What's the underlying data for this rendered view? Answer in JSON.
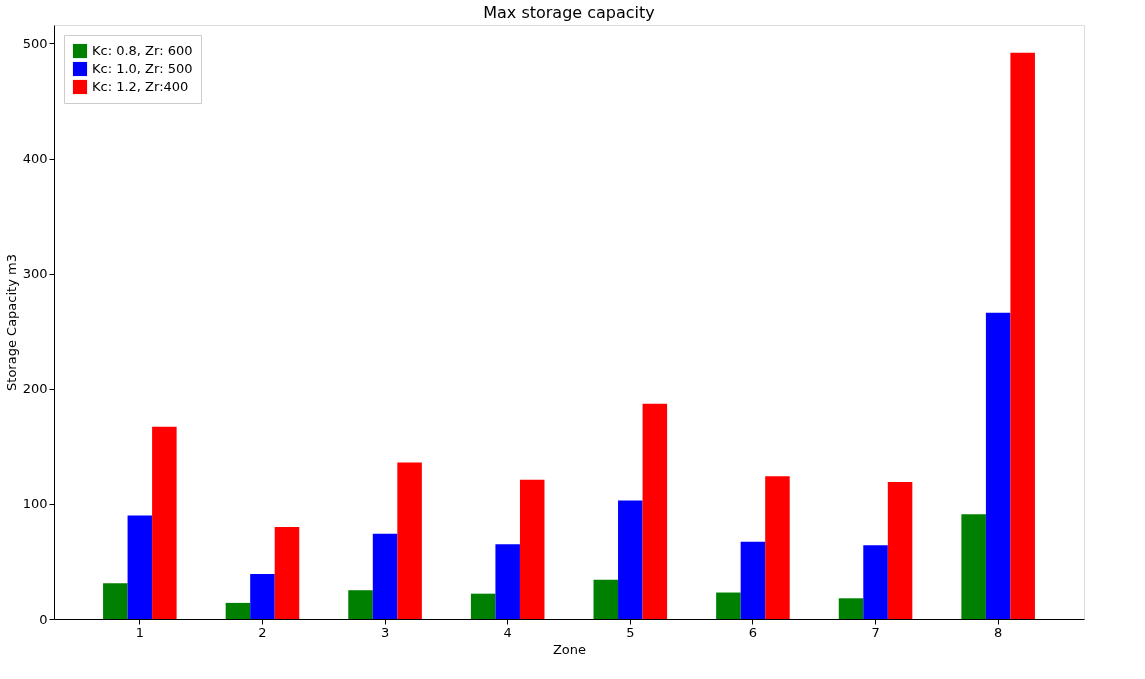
{
  "chart_data": {
    "type": "bar",
    "title": "Max storage capacity",
    "xlabel": "Zone",
    "ylabel": "Storage Capacity m3",
    "categories": [
      "1",
      "2",
      "3",
      "4",
      "5",
      "6",
      "7",
      "8"
    ],
    "series": [
      {
        "name": "Kc: 0.8, Zr: 600",
        "color": "#008000",
        "values": [
          31,
          14,
          25,
          22,
          34,
          23,
          18,
          91
        ]
      },
      {
        "name": "Kc: 1.0, Zr: 500",
        "color": "#0000ff",
        "values": [
          90,
          39,
          74,
          65,
          103,
          67,
          64,
          266
        ]
      },
      {
        "name": "Kc: 1.2, Zr:400",
        "color": "#ff0000",
        "values": [
          167,
          80,
          136,
          121,
          187,
          124,
          119,
          492
        ]
      }
    ],
    "ylim": [
      0,
      516
    ],
    "yticks": [
      0,
      100,
      200,
      300,
      400,
      500
    ],
    "grid": false,
    "legend": "top left"
  }
}
